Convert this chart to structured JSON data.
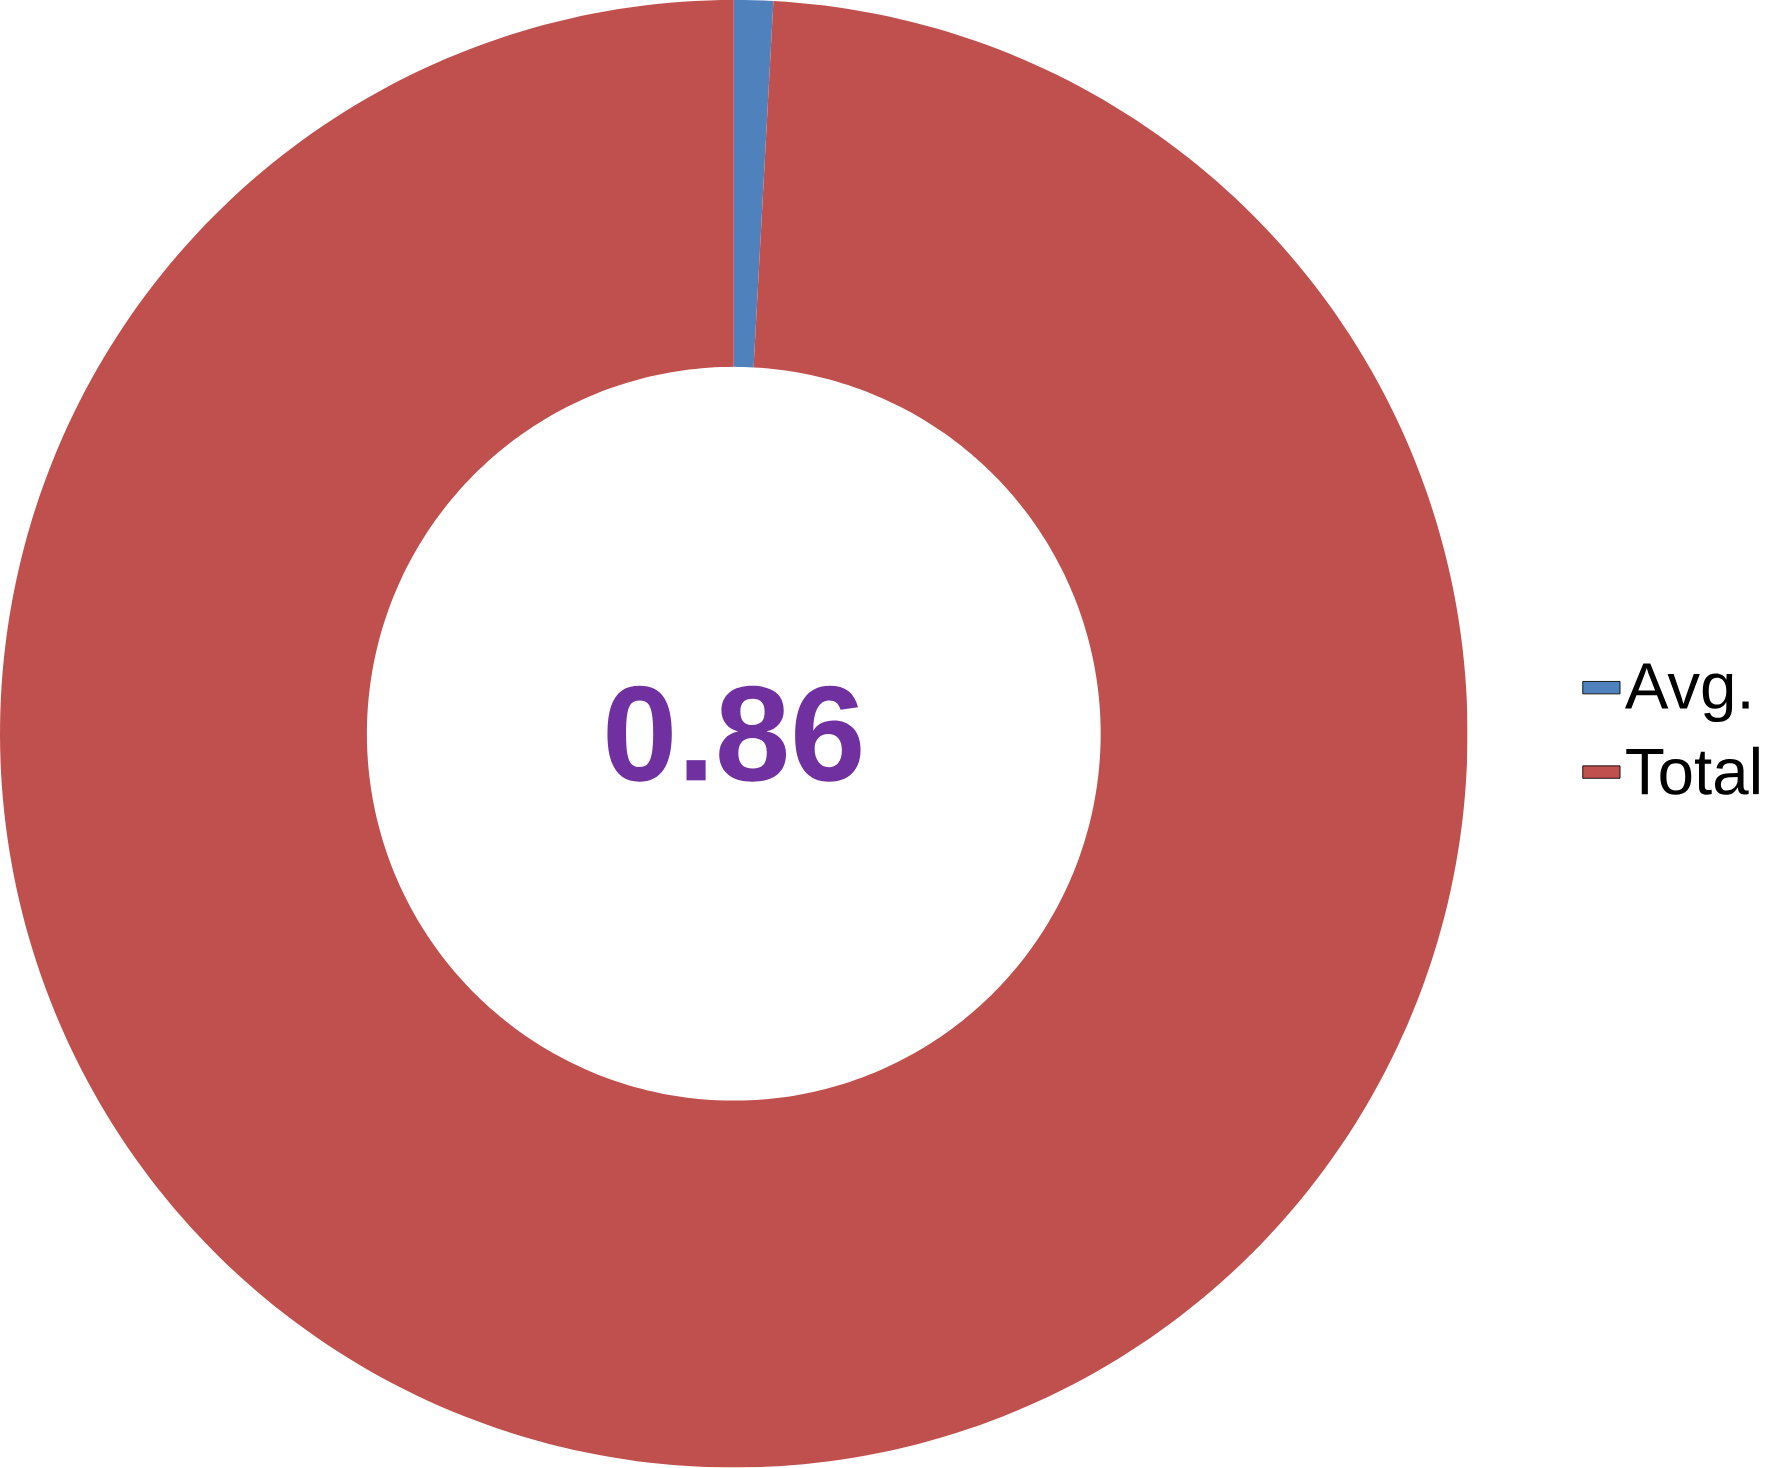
{
  "chart_data": {
    "type": "donut",
    "categories": [
      "Avg.",
      "Total"
    ],
    "values": [
      0.86,
      99.14
    ],
    "colors": [
      "#4f81bd",
      "#c0504d"
    ],
    "annotations": [
      "0.86"
    ],
    "legend": "right"
  }
}
